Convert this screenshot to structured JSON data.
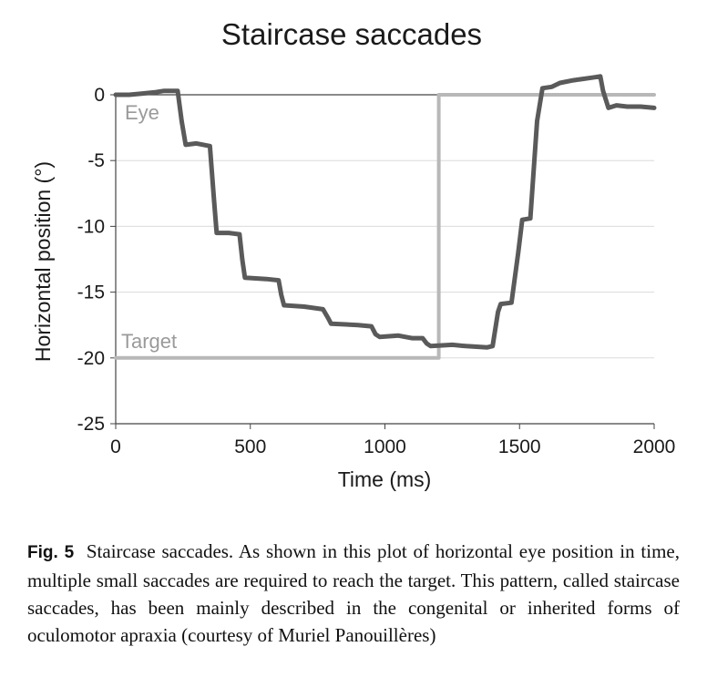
{
  "chart_data": {
    "type": "line",
    "title": "Staircase saccades",
    "xlabel": "Time (ms)",
    "ylabel": "Horizontal position (°)",
    "xlim": [
      0,
      2000
    ],
    "ylim": [
      -25,
      0
    ],
    "x_ticks": [
      0,
      500,
      1000,
      1500,
      2000
    ],
    "y_ticks": [
      0,
      -5,
      -10,
      -15,
      -20,
      -25
    ],
    "grid": "horizontal",
    "series": [
      {
        "name": "Eye",
        "color": "#5a5a5a",
        "points": [
          [
            0,
            0
          ],
          [
            50,
            0
          ],
          [
            100,
            0.1
          ],
          [
            150,
            0.2
          ],
          [
            180,
            0.3
          ],
          [
            230,
            0.3
          ],
          [
            245,
            -2
          ],
          [
            260,
            -3.8
          ],
          [
            300,
            -3.7
          ],
          [
            350,
            -3.9
          ],
          [
            365,
            -8
          ],
          [
            375,
            -10.5
          ],
          [
            420,
            -10.5
          ],
          [
            460,
            -10.6
          ],
          [
            470,
            -12.5
          ],
          [
            480,
            -13.9
          ],
          [
            560,
            -14
          ],
          [
            605,
            -14.1
          ],
          [
            615,
            -15.2
          ],
          [
            625,
            -16
          ],
          [
            700,
            -16.1
          ],
          [
            770,
            -16.3
          ],
          [
            790,
            -17
          ],
          [
            800,
            -17.4
          ],
          [
            900,
            -17.5
          ],
          [
            950,
            -17.6
          ],
          [
            965,
            -18.2
          ],
          [
            980,
            -18.4
          ],
          [
            1050,
            -18.3
          ],
          [
            1100,
            -18.5
          ],
          [
            1140,
            -18.5
          ],
          [
            1155,
            -18.9
          ],
          [
            1170,
            -19.1
          ],
          [
            1250,
            -19
          ],
          [
            1300,
            -19.1
          ],
          [
            1380,
            -19.2
          ],
          [
            1400,
            -19.1
          ],
          [
            1420,
            -16.5
          ],
          [
            1430,
            -15.9
          ],
          [
            1470,
            -15.8
          ],
          [
            1495,
            -12
          ],
          [
            1510,
            -9.5
          ],
          [
            1540,
            -9.4
          ],
          [
            1555,
            -5
          ],
          [
            1565,
            -2
          ],
          [
            1585,
            0.5
          ],
          [
            1620,
            0.6
          ],
          [
            1650,
            0.9
          ],
          [
            1700,
            1.1
          ],
          [
            1770,
            1.3
          ],
          [
            1800,
            1.4
          ],
          [
            1810,
            0.3
          ],
          [
            1830,
            -1
          ],
          [
            1860,
            -0.8
          ],
          [
            1900,
            -0.9
          ],
          [
            1950,
            -0.9
          ],
          [
            2000,
            -1
          ]
        ]
      },
      {
        "name": "Target",
        "color": "#b8b8b8",
        "points": [
          [
            0,
            -20
          ],
          [
            1200,
            -20
          ],
          [
            1200,
            0
          ],
          [
            2000,
            0
          ]
        ]
      }
    ]
  },
  "caption": {
    "figure_label": "Fig. 5",
    "text": "Staircase saccades. As shown in this plot of horizontal eye position in time, multiple small saccades are required to reach the target. This pattern, called staircase saccades, has been mainly described in the congenital or inherited forms of oculomotor apraxia (courtesy of Muriel Panouillères)"
  }
}
